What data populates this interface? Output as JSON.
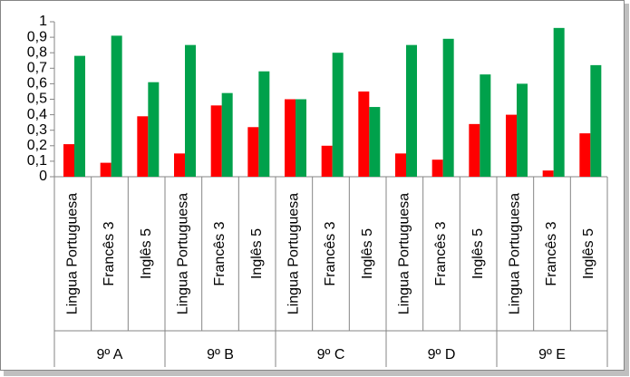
{
  "chart_data": {
    "type": "bar",
    "categories": [
      "Lingua Portuguesa",
      "Francês 3",
      "Inglês 5",
      "Lingua Portuguesa",
      "Francês 3",
      "Inglês 5",
      "Lingua Portuguesa",
      "Francês 3",
      "Inglês 5",
      "Lingua Portuguesa",
      "Francês 3",
      "Inglês 5",
      "Lingua Portuguesa",
      "Francês 3",
      "Inglês 5"
    ],
    "groups": [
      "9º A",
      "9º B",
      "9º C",
      "9º D",
      "9º E"
    ],
    "series": [
      {
        "color": "#ff0000",
        "values": [
          0.21,
          0.09,
          0.39,
          0.15,
          0.46,
          0.32,
          0.5,
          0.2,
          0.55,
          0.15,
          0.11,
          0.34,
          0.4,
          0.04,
          0.28
        ]
      },
      {
        "color": "#00a14b",
        "values": [
          0.78,
          0.91,
          0.61,
          0.85,
          0.54,
          0.68,
          0.5,
          0.8,
          0.45,
          0.85,
          0.89,
          0.66,
          0.6,
          0.96,
          0.72
        ]
      }
    ],
    "ylim": [
      0,
      1
    ],
    "yticks": [
      0,
      {
        "value": 0.1,
        "label": "0,1"
      },
      {
        "value": 0.2,
        "label": "0,2"
      },
      {
        "value": 0.3,
        "label": "0,3"
      },
      {
        "value": 0.4,
        "label": "0,4"
      },
      {
        "value": 0.5,
        "label": "0,5"
      },
      {
        "value": 0.6,
        "label": "0,6"
      },
      {
        "value": 0.7,
        "label": "0,7"
      },
      {
        "value": 0.8,
        "label": "0,8"
      },
      {
        "value": 0.9,
        "label": "0,9"
      },
      1
    ],
    "grid": false
  }
}
